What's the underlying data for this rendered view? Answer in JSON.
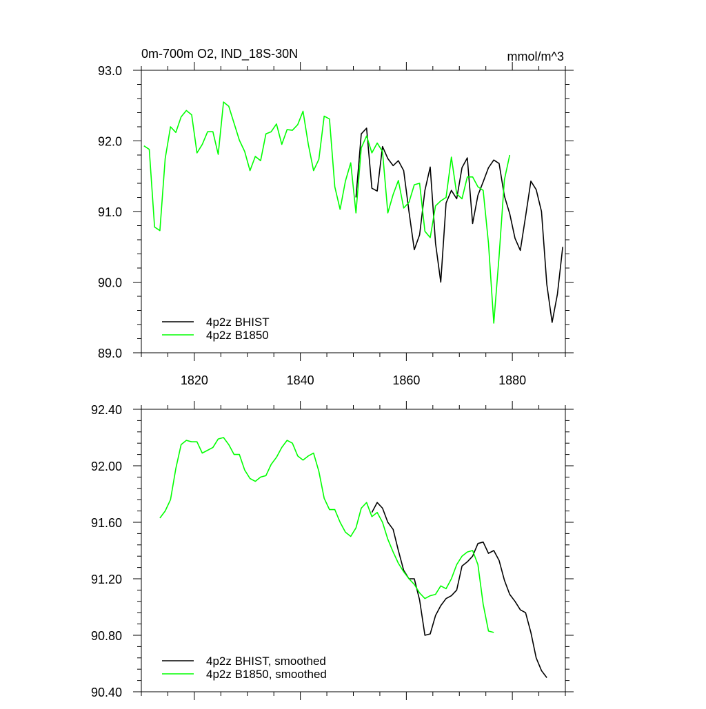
{
  "chart_data": [
    {
      "type": "line",
      "title": "0m-700m O2, IND_18S-30N",
      "units": "mmol/m^3",
      "xlim": [
        1810,
        1890
      ],
      "ylim": [
        89.0,
        93.0
      ],
      "x_ticks": [
        1820,
        1840,
        1860,
        1880
      ],
      "y_ticks": [
        "89.0",
        "90.0",
        "91.0",
        "92.0",
        "93.0"
      ],
      "grid": false,
      "legend_position": "bottom-left",
      "series": [
        {
          "name": "4p2z BHIST",
          "color": "#000000",
          "x": [
            1850.5,
            1851.5,
            1852.5,
            1853.5,
            1854.5,
            1855.5,
            1856.5,
            1857.5,
            1858.5,
            1859.5,
            1860.5,
            1861.5,
            1862.5,
            1863.5,
            1864.5,
            1865.5,
            1866.5,
            1867.5,
            1868.5,
            1869.5,
            1870.5,
            1871.5,
            1872.5,
            1873.5,
            1874.5,
            1875.5,
            1876.5,
            1877.5,
            1878.5,
            1879.5,
            1880.5,
            1881.5,
            1882.5,
            1883.5,
            1884.5,
            1885.5,
            1886.5,
            1887.5,
            1888.5,
            1889.5
          ],
          "y": [
            91.2,
            92.1,
            92.18,
            91.33,
            91.29,
            91.92,
            91.75,
            91.65,
            91.72,
            91.58,
            91.0,
            90.46,
            90.67,
            91.3,
            91.63,
            90.55,
            90.0,
            91.12,
            91.3,
            91.18,
            91.62,
            91.76,
            90.83,
            91.23,
            91.42,
            91.62,
            91.73,
            91.68,
            91.22,
            90.97,
            90.62,
            90.45,
            90.93,
            91.43,
            91.31,
            91.0,
            89.97,
            89.43,
            89.83,
            90.5
          ]
        },
        {
          "name": "4p2z B1850",
          "color": "#00ff00",
          "x": [
            1810.5,
            1811.5,
            1812.5,
            1813.5,
            1814.5,
            1815.5,
            1816.5,
            1817.5,
            1818.5,
            1819.5,
            1820.5,
            1821.5,
            1822.5,
            1823.5,
            1824.5,
            1825.5,
            1826.5,
            1827.5,
            1828.5,
            1829.5,
            1830.5,
            1831.5,
            1832.5,
            1833.5,
            1834.5,
            1835.5,
            1836.5,
            1837.5,
            1838.5,
            1839.5,
            1840.5,
            1841.5,
            1842.5,
            1843.5,
            1844.5,
            1845.5,
            1846.5,
            1847.5,
            1848.5,
            1849.5,
            1850.5,
            1851.5,
            1852.5,
            1853.5,
            1854.5,
            1855.5,
            1856.5,
            1857.5,
            1858.5,
            1859.5,
            1860.5,
            1861.5,
            1862.5,
            1863.5,
            1864.5,
            1865.5,
            1866.5,
            1867.5,
            1868.5,
            1869.5,
            1870.5,
            1871.5,
            1872.5,
            1873.5,
            1874.5,
            1875.5,
            1876.5,
            1877.5,
            1878.5,
            1879.5
          ],
          "y": [
            91.93,
            91.88,
            90.78,
            90.73,
            91.75,
            92.2,
            92.12,
            92.34,
            92.43,
            92.37,
            91.83,
            91.95,
            92.13,
            92.13,
            91.81,
            92.55,
            92.49,
            92.25,
            92.01,
            91.85,
            91.58,
            91.78,
            91.72,
            92.1,
            92.13,
            92.24,
            91.95,
            92.16,
            92.15,
            92.23,
            92.42,
            91.95,
            91.58,
            91.74,
            92.35,
            92.31,
            91.35,
            91.03,
            91.43,
            91.69,
            90.98,
            91.9,
            92.07,
            91.83,
            91.97,
            91.85,
            90.98,
            91.24,
            91.44,
            91.05,
            91.13,
            91.38,
            91.4,
            90.72,
            90.63,
            91.08,
            91.15,
            91.2,
            91.77,
            91.25,
            91.18,
            91.49,
            91.49,
            91.35,
            91.3,
            90.55,
            89.42,
            90.37,
            91.45,
            91.8
          ]
        }
      ]
    },
    {
      "type": "line",
      "xlim": [
        1810,
        1890
      ],
      "ylim": [
        90.4,
        92.4
      ],
      "x_ticks": [
        1820,
        1840,
        1860,
        1880
      ],
      "y_ticks": [
        "90.40",
        "90.80",
        "91.20",
        "91.60",
        "92.00",
        "92.40"
      ],
      "grid": false,
      "legend_position": "bottom-left",
      "series": [
        {
          "name": "4p2z BHIST, smoothed",
          "color": "#000000",
          "x": [
            1853.5,
            1854.5,
            1855.5,
            1856.5,
            1857.5,
            1858.5,
            1859.5,
            1860.5,
            1861.5,
            1862.5,
            1863.5,
            1864.5,
            1865.5,
            1866.5,
            1867.5,
            1868.5,
            1869.5,
            1870.5,
            1871.5,
            1872.5,
            1873.5,
            1874.5,
            1875.5,
            1876.5,
            1877.5,
            1878.5,
            1879.5,
            1880.5,
            1881.5,
            1882.5,
            1883.5,
            1884.5,
            1885.5,
            1886.5
          ],
          "y": [
            91.67,
            91.74,
            91.7,
            91.6,
            91.55,
            91.4,
            91.26,
            91.2,
            91.2,
            91.05,
            90.8,
            90.81,
            90.94,
            91.01,
            91.06,
            91.08,
            91.12,
            91.29,
            91.32,
            91.36,
            91.45,
            91.46,
            91.38,
            91.4,
            91.33,
            91.19,
            91.09,
            91.04,
            90.98,
            90.96,
            90.82,
            90.64,
            90.55,
            90.5
          ]
        },
        {
          "name": "4p2z B1850, smoothed",
          "color": "#00ff00",
          "x": [
            1813.5,
            1814.5,
            1815.5,
            1816.5,
            1817.5,
            1818.5,
            1819.5,
            1820.5,
            1821.5,
            1822.5,
            1823.5,
            1824.5,
            1825.5,
            1826.5,
            1827.5,
            1828.5,
            1829.5,
            1830.5,
            1831.5,
            1832.5,
            1833.5,
            1834.5,
            1835.5,
            1836.5,
            1837.5,
            1838.5,
            1839.5,
            1840.5,
            1841.5,
            1842.5,
            1843.5,
            1844.5,
            1845.5,
            1846.5,
            1847.5,
            1848.5,
            1849.5,
            1850.5,
            1851.5,
            1852.5,
            1853.5,
            1854.5,
            1855.5,
            1856.5,
            1857.5,
            1858.5,
            1859.5,
            1860.5,
            1861.5,
            1862.5,
            1863.5,
            1864.5,
            1865.5,
            1866.5,
            1867.5,
            1868.5,
            1869.5,
            1870.5,
            1871.5,
            1872.5,
            1873.5,
            1874.5,
            1875.5,
            1876.5
          ],
          "y": [
            91.63,
            91.68,
            91.76,
            91.98,
            92.15,
            92.18,
            92.17,
            92.17,
            92.09,
            92.11,
            92.13,
            92.19,
            92.2,
            92.15,
            92.08,
            92.08,
            91.97,
            91.91,
            91.89,
            91.92,
            91.93,
            92.01,
            92.06,
            92.13,
            92.18,
            92.16,
            92.07,
            92.04,
            92.07,
            92.09,
            91.96,
            91.77,
            91.69,
            91.69,
            91.6,
            91.53,
            91.5,
            91.56,
            91.7,
            91.74,
            91.64,
            91.67,
            91.6,
            91.48,
            91.39,
            91.31,
            91.25,
            91.2,
            91.16,
            91.1,
            91.06,
            91.08,
            91.09,
            91.15,
            91.13,
            91.2,
            91.3,
            91.36,
            91.39,
            91.4,
            91.3,
            91.02,
            90.83,
            90.82
          ]
        }
      ]
    }
  ]
}
